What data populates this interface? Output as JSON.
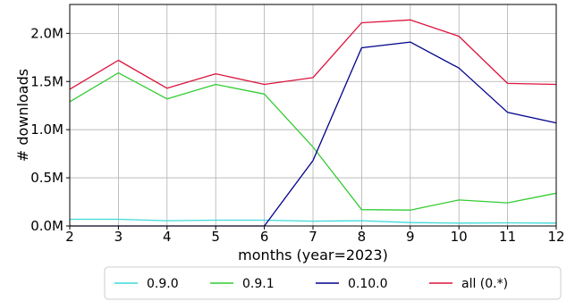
{
  "chart_data": {
    "type": "line",
    "xlabel": "months (year=2023)",
    "ylabel": "# downloads",
    "xlim": [
      2,
      12
    ],
    "ylim": [
      0,
      2300000
    ],
    "grid": true,
    "legend_position": "bottom-center",
    "x": [
      2,
      3,
      4,
      5,
      6,
      7,
      8,
      9,
      10,
      11,
      12
    ],
    "x_tick_labels": [
      "2",
      "3",
      "4",
      "5",
      "6",
      "7",
      "8",
      "9",
      "10",
      "11",
      "12"
    ],
    "y_ticks": [
      0,
      500000,
      1000000,
      1500000,
      2000000
    ],
    "y_tick_labels": [
      "0.0M",
      "0.5M",
      "1.0M",
      "1.5M",
      "2.0M"
    ],
    "series": [
      {
        "name": "0.9.0",
        "color": "#3fd9d9",
        "values": [
          70000,
          70000,
          55000,
          60000,
          60000,
          50000,
          55000,
          35000,
          30000,
          32000,
          30000
        ]
      },
      {
        "name": "0.9.1",
        "color": "#33cc33",
        "values": [
          1290000,
          1590000,
          1320000,
          1470000,
          1370000,
          820000,
          170000,
          165000,
          270000,
          240000,
          340000
        ]
      },
      {
        "name": "0.10.0",
        "color": "#00008b",
        "values": [
          0,
          0,
          0,
          0,
          0,
          680000,
          1850000,
          1910000,
          1640000,
          1180000,
          1070000
        ]
      },
      {
        "name": "all (0.*)",
        "color": "#dc143c",
        "values": [
          1420000,
          1720000,
          1430000,
          1580000,
          1470000,
          1540000,
          2110000,
          2140000,
          1970000,
          1480000,
          1470000
        ]
      }
    ]
  }
}
